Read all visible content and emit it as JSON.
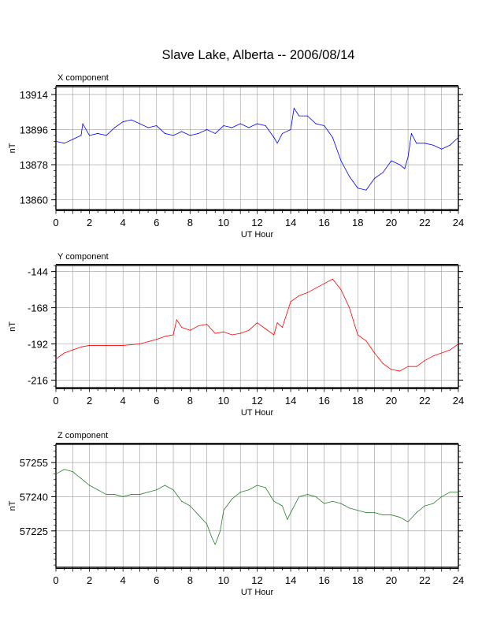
{
  "title": "Slave Lake, Alberta -- 2006/08/14",
  "chart_data": [
    {
      "type": "line",
      "panel_label": "X component",
      "xlabel": "UT Hour",
      "ylabel": "nT",
      "xlim": [
        0,
        24
      ],
      "ylim": [
        13855,
        13918
      ],
      "xticks": [
        0,
        2,
        4,
        6,
        8,
        10,
        12,
        14,
        16,
        18,
        20,
        22,
        24
      ],
      "yticks": [
        13860,
        13878,
        13896,
        13914
      ],
      "grid": true,
      "color": "#0000ff",
      "series": [
        {
          "x": [
            0,
            0.5,
            1,
            1.5,
            1.6,
            2,
            2.5,
            3,
            3.5,
            4,
            4.5,
            5,
            5.5,
            6,
            6.5,
            7,
            7.5,
            8,
            8.5,
            9,
            9.5,
            10,
            10.5,
            11,
            11.5,
            12,
            12.5,
            13,
            13.2,
            13.5,
            14,
            14.2,
            14.5,
            15,
            15.5,
            16,
            16.5,
            17,
            17.5,
            18,
            18.5,
            19,
            19.5,
            20,
            20.5,
            20.8,
            21,
            21.2,
            21.5,
            22,
            22.5,
            23,
            23.5,
            24
          ],
          "y": [
            13890,
            13889,
            13891,
            13893,
            13899,
            13893,
            13894,
            13893,
            13897,
            13900,
            13901,
            13899,
            13897,
            13898,
            13894,
            13893,
            13895,
            13893,
            13894,
            13896,
            13894,
            13898,
            13897,
            13899,
            13897,
            13899,
            13898,
            13892,
            13889,
            13894,
            13896,
            13907,
            13903,
            13903,
            13899,
            13898,
            13892,
            13880,
            13872,
            13866,
            13865,
            13871,
            13874,
            13880,
            13878,
            13876,
            13882,
            13894,
            13889,
            13889,
            13888,
            13886,
            13888,
            13892
          ]
        }
      ]
    },
    {
      "type": "line",
      "panel_label": "Y component",
      "xlabel": "UT Hour",
      "ylabel": "nT",
      "xlim": [
        0,
        24
      ],
      "ylim": [
        -221,
        -140
      ],
      "xticks": [
        0,
        2,
        4,
        6,
        8,
        10,
        12,
        14,
        16,
        18,
        20,
        22,
        24
      ],
      "yticks": [
        -144,
        -168,
        -192,
        -216
      ],
      "grid": true,
      "color": "#ff0000",
      "series": [
        {
          "x": [
            0,
            0.5,
            1,
            1.5,
            2,
            3,
            4,
            5,
            6,
            6.5,
            7,
            7.2,
            7.5,
            8,
            8.5,
            9,
            9.5,
            10,
            10.5,
            11,
            11.5,
            12,
            12.5,
            13,
            13.2,
            13.5,
            14,
            14.5,
            15,
            15.5,
            16,
            16.5,
            17,
            17.5,
            18,
            18.5,
            19,
            19.5,
            20,
            20.5,
            21,
            21.5,
            22,
            22.5,
            23,
            23.5,
            24
          ],
          "y": [
            -202,
            -198,
            -196,
            -194,
            -193,
            -193,
            -193,
            -192,
            -189,
            -187,
            -186,
            -176,
            -181,
            -183,
            -180,
            -179,
            -185,
            -184,
            -186,
            -185,
            -183,
            -178,
            -182,
            -186,
            -178,
            -181,
            -164,
            -160,
            -158,
            -155,
            -152,
            -149,
            -156,
            -168,
            -186,
            -190,
            -198,
            -205,
            -209,
            -210,
            -207,
            -207,
            -203,
            -200,
            -198,
            -196,
            -192
          ]
        }
      ]
    },
    {
      "type": "line",
      "panel_label": "Z component",
      "xlabel": "UT Hour",
      "ylabel": "nT",
      "xlim": [
        0,
        24
      ],
      "ylim": [
        57209,
        57263
      ],
      "xticks": [
        0,
        2,
        4,
        6,
        8,
        10,
        12,
        14,
        16,
        18,
        20,
        22,
        24
      ],
      "yticks": [
        57225,
        57240,
        57255
      ],
      "grid": true,
      "color": "#2e7d32",
      "series": [
        {
          "x": [
            0,
            0.5,
            1,
            1.5,
            2,
            2.5,
            3,
            3.5,
            4,
            4.5,
            5,
            5.5,
            6,
            6.5,
            7,
            7.5,
            8,
            8.5,
            9,
            9.3,
            9.5,
            9.8,
            10,
            10.5,
            11,
            11.5,
            12,
            12.5,
            13,
            13.5,
            13.8,
            14,
            14.5,
            15,
            15.5,
            16,
            16.5,
            17,
            17.5,
            18,
            18.5,
            19,
            19.5,
            20,
            20.5,
            21,
            21.5,
            22,
            22.5,
            23,
            23.5,
            24
          ],
          "y": [
            57250,
            57252,
            57251,
            57248,
            57245,
            57243,
            57241,
            57241,
            57240,
            57241,
            57241,
            57242,
            57243,
            57245,
            57243,
            57238,
            57236,
            57232,
            57228,
            57222,
            57219,
            57225,
            57234,
            57239,
            57242,
            57243,
            57245,
            57244,
            57238,
            57236,
            57230,
            57233,
            57240,
            57241,
            57240,
            57237,
            57238,
            57237,
            57235,
            57234,
            57233,
            57233,
            57232,
            57232,
            57231,
            57229,
            57233,
            57236,
            57237,
            57240,
            57242,
            57242
          ]
        }
      ]
    }
  ]
}
